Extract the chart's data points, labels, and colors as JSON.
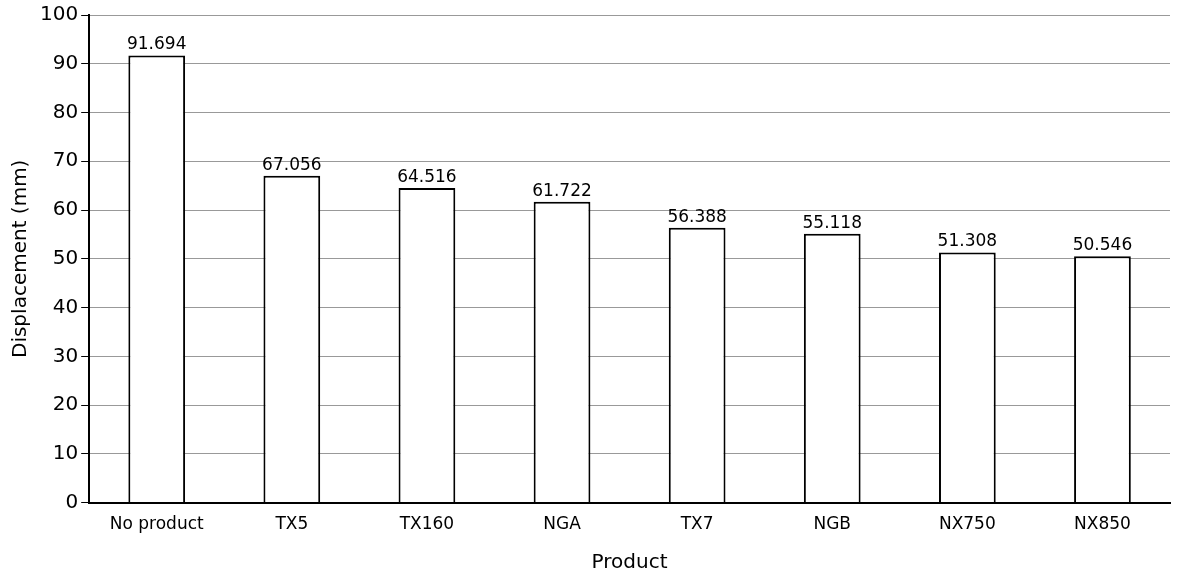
{
  "chart_data": {
    "type": "bar",
    "xlabel": "Product",
    "ylabel": "Displacement (mm)",
    "categories": [
      "No product",
      "TX5",
      "TX160",
      "NGA",
      "TX7",
      "NGB",
      "NX750",
      "NX850"
    ],
    "values": [
      91.694,
      67.056,
      64.516,
      61.722,
      56.388,
      55.118,
      51.308,
      50.546
    ],
    "color": "#ffffff",
    "ylim": [
      0,
      100
    ],
    "yticks": [
      0,
      10,
      20,
      30,
      40,
      50,
      60,
      70,
      80,
      90,
      100
    ],
    "grid": "y",
    "data_labels": true,
    "legend": false
  }
}
